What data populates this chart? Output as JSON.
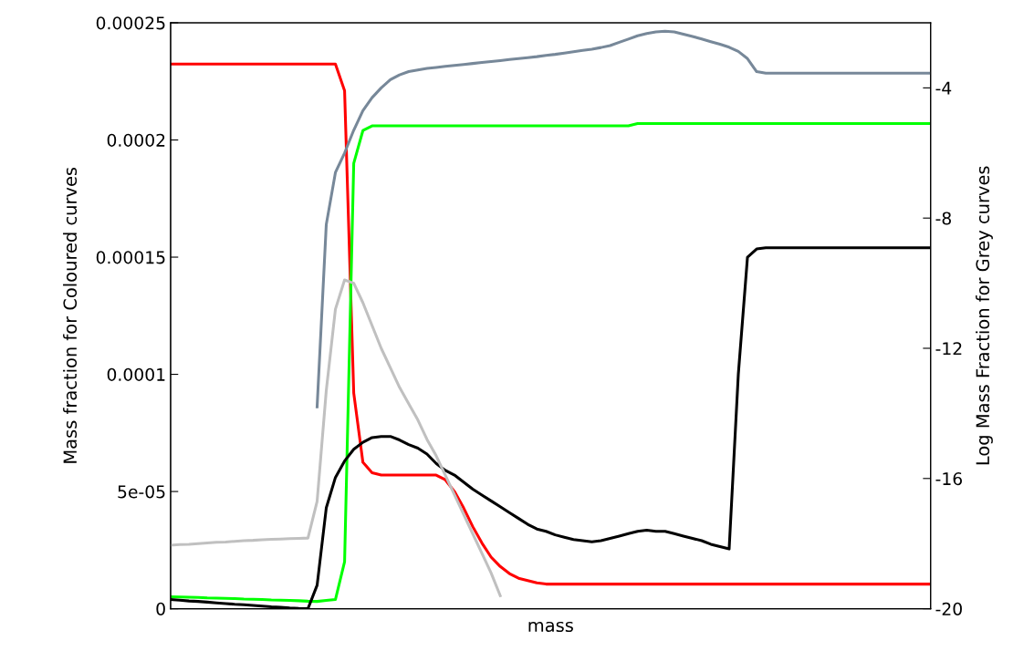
{
  "chart_data": {
    "type": "line",
    "xlabel": "mass",
    "ylabel": "Mass fraction for Coloured curves",
    "y2label": "Log Mass Fraction for Grey curves",
    "categories": [
      null,
      null,
      null,
      null,
      null,
      null,
      null,
      null,
      null,
      null,
      null,
      null,
      null,
      null,
      null,
      null,
      null,
      null,
      null,
      null,
      null,
      null,
      null,
      null,
      null,
      null,
      null,
      null,
      null,
      null,
      null,
      null,
      null,
      null,
      null,
      null,
      null,
      null,
      null,
      null,
      null,
      null,
      null,
      null,
      null,
      null,
      null,
      null,
      null,
      null,
      null,
      null,
      null,
      null,
      null,
      null,
      null,
      null,
      null,
      null,
      null,
      null,
      null,
      null,
      null,
      null,
      null,
      null,
      null,
      null,
      null,
      null,
      null,
      null,
      null,
      null,
      null,
      null,
      null,
      null,
      null,
      null,
      null,
      null
    ],
    "tick_labels": "y",
    "ylim": [
      0,
      0.00025
    ],
    "yticks": [
      {
        "value": 0,
        "label": "0"
      },
      {
        "value": 5e-05,
        "label": "5e-05"
      },
      {
        "value": 0.0001,
        "label": "0.0001"
      },
      {
        "value": 0.00015,
        "label": "0.00015"
      },
      {
        "value": 0.0002,
        "label": "0.0002"
      },
      {
        "value": 0.00025,
        "label": "0.00025"
      }
    ],
    "y2lim": [
      -20,
      -2
    ],
    "y2ticks": [
      -20,
      -16,
      -12,
      -8,
      -4
    ],
    "series": [
      {
        "color": "#c0c0c0",
        "axis": "y2",
        "values": [
          -18.05,
          -18.03,
          -18.02,
          -18.0,
          -17.98,
          -17.96,
          -17.95,
          -17.93,
          -17.91,
          -17.9,
          -17.88,
          -17.87,
          -17.86,
          -17.85,
          -17.84,
          -17.83,
          -16.7,
          -13.3,
          -10.8,
          -9.9,
          -10.0,
          -10.6,
          -11.3,
          -12.0,
          -12.6,
          -13.2,
          -13.7,
          -14.2,
          -14.8,
          -15.3,
          -15.9,
          -16.5,
          -17.1,
          -17.7,
          -18.3,
          -18.9,
          -19.6,
          null,
          null,
          null,
          null,
          null,
          null,
          null,
          null,
          null,
          null,
          null,
          null,
          null,
          null,
          null,
          null,
          null,
          null,
          null,
          null,
          null,
          null,
          null,
          null,
          null,
          null,
          null,
          null,
          null,
          null,
          null,
          null,
          null,
          null,
          null,
          null,
          null,
          null,
          null,
          null,
          null,
          null,
          null,
          null,
          null,
          null,
          null
        ]
      },
      {
        "color": "#778899",
        "axis": "y2",
        "values": [
          null,
          null,
          null,
          null,
          null,
          null,
          null,
          null,
          null,
          null,
          null,
          null,
          null,
          null,
          null,
          null,
          -13.8,
          -8.2,
          -6.6,
          -6.0,
          -5.3,
          -4.7,
          -4.3,
          -4.0,
          -3.75,
          -3.6,
          -3.5,
          -3.45,
          -3.4,
          -3.37,
          -3.34,
          -3.31,
          -3.28,
          -3.25,
          -3.22,
          -3.19,
          -3.16,
          -3.13,
          -3.1,
          -3.07,
          -3.04,
          -3.0,
          -2.97,
          -2.93,
          -2.89,
          -2.85,
          -2.81,
          -2.76,
          -2.7,
          -2.6,
          -2.5,
          -2.4,
          -2.33,
          -2.28,
          -2.26,
          -2.28,
          -2.35,
          -2.42,
          -2.5,
          -2.58,
          -2.66,
          -2.75,
          -2.88,
          -3.1,
          -3.5,
          -3.55,
          -3.55,
          -3.55,
          -3.55,
          -3.55,
          -3.55,
          -3.55,
          -3.55,
          -3.55,
          -3.55,
          -3.55,
          -3.55,
          -3.55,
          -3.55,
          -3.55,
          -3.55,
          -3.55,
          -3.55,
          -3.55
        ]
      },
      {
        "color": "#ff0000",
        "values": [
          0.0002324,
          0.0002324,
          0.0002324,
          0.0002324,
          0.0002324,
          0.0002324,
          0.0002324,
          0.0002324,
          0.0002324,
          0.0002324,
          0.0002324,
          0.0002324,
          0.0002324,
          0.0002324,
          0.0002324,
          0.0002324,
          0.0002324,
          0.0002324,
          0.0002324,
          0.000221,
          9.2e-05,
          6.25e-05,
          5.8e-05,
          5.7e-05,
          5.7e-05,
          5.7e-05,
          5.7e-05,
          5.7e-05,
          5.7e-05,
          5.7e-05,
          5.5e-05,
          5e-05,
          4.3e-05,
          3.5e-05,
          2.8e-05,
          2.2e-05,
          1.8e-05,
          1.5e-05,
          1.3e-05,
          1.2e-05,
          1.1e-05,
          1.05e-05,
          1.05e-05,
          1.05e-05,
          1.05e-05,
          1.05e-05,
          1.05e-05,
          1.05e-05,
          1.05e-05,
          1.05e-05,
          1.05e-05,
          1.05e-05,
          1.05e-05,
          1.05e-05,
          1.05e-05,
          1.05e-05,
          1.05e-05,
          1.05e-05,
          1.05e-05,
          1.05e-05,
          1.05e-05,
          1.05e-05,
          1.05e-05,
          1.05e-05,
          1.05e-05,
          1.05e-05,
          1.05e-05,
          1.05e-05,
          1.05e-05,
          1.05e-05,
          1.05e-05,
          1.05e-05,
          1.05e-05,
          1.05e-05,
          1.05e-05,
          1.05e-05,
          1.05e-05,
          1.05e-05,
          1.05e-05,
          1.05e-05,
          1.05e-05,
          1.05e-05,
          1.05e-05,
          1.05e-05
        ]
      },
      {
        "color": "#00ff00",
        "values": [
          5.1e-06,
          5e-06,
          4.9e-06,
          4.8e-06,
          4.6e-06,
          4.5e-06,
          4.4e-06,
          4.3e-06,
          4.1e-06,
          4e-06,
          3.9e-06,
          3.7e-06,
          3.6e-06,
          3.5e-06,
          3.4e-06,
          3.2e-06,
          3.1e-06,
          3.5e-06,
          3.9e-06,
          2e-05,
          0.00019,
          0.000204,
          0.000206,
          0.000206,
          0.000206,
          0.000206,
          0.000206,
          0.000206,
          0.000206,
          0.000206,
          0.000206,
          0.000206,
          0.000206,
          0.000206,
          0.000206,
          0.000206,
          0.000206,
          0.000206,
          0.000206,
          0.000206,
          0.000206,
          0.000206,
          0.000206,
          0.000206,
          0.000206,
          0.000206,
          0.000206,
          0.000206,
          0.000206,
          0.000206,
          0.000206,
          0.000207,
          0.000207,
          0.000207,
          0.000207,
          0.000207,
          0.000207,
          0.000207,
          0.000207,
          0.000207,
          0.000207,
          0.000207,
          0.000207,
          0.000207,
          0.000207,
          0.000207,
          0.000207,
          0.000207,
          0.000207,
          0.000207,
          0.000207,
          0.000207,
          0.000207,
          0.000207,
          0.000207,
          0.000207,
          0.000207,
          0.000207,
          0.000207,
          0.000207,
          0.000207,
          0.000207,
          0.000207,
          0.000207
        ]
      },
      {
        "color": "#000000",
        "values": [
          3.9e-06,
          3.6e-06,
          3.3e-06,
          3.1e-06,
          2.8e-06,
          2.5e-06,
          2.2e-06,
          1.9e-06,
          1.7e-06,
          1.4e-06,
          1.1e-06,
          8e-07,
          6e-07,
          3e-07,
          1e-07,
          0,
          1e-05,
          4.3e-05,
          5.6e-05,
          6.3e-05,
          6.8e-05,
          7.1e-05,
          7.3e-05,
          7.35e-05,
          7.35e-05,
          7.2e-05,
          7e-05,
          6.85e-05,
          6.6e-05,
          6.2e-05,
          5.9e-05,
          5.7e-05,
          5.4e-05,
          5.1e-05,
          4.85e-05,
          4.6e-05,
          4.35e-05,
          4.1e-05,
          3.85e-05,
          3.6e-05,
          3.4e-05,
          3.3e-05,
          3.15e-05,
          3.05e-05,
          2.95e-05,
          2.9e-05,
          2.85e-05,
          2.9e-05,
          3e-05,
          3.1e-05,
          3.2e-05,
          3.3e-05,
          3.35e-05,
          3.3e-05,
          3.3e-05,
          3.2e-05,
          3.1e-05,
          3e-05,
          2.9e-05,
          2.75e-05,
          2.65e-05,
          2.55e-05,
          0.0001,
          0.00015,
          0.0001535,
          0.000154,
          0.000154,
          0.000154,
          0.000154,
          0.000154,
          0.000154,
          0.000154,
          0.000154,
          0.000154,
          0.000154,
          0.000154,
          0.000154,
          0.000154,
          0.000154,
          0.000154,
          0.000154,
          0.000154,
          0.000154,
          0.000154
        ]
      }
    ]
  }
}
